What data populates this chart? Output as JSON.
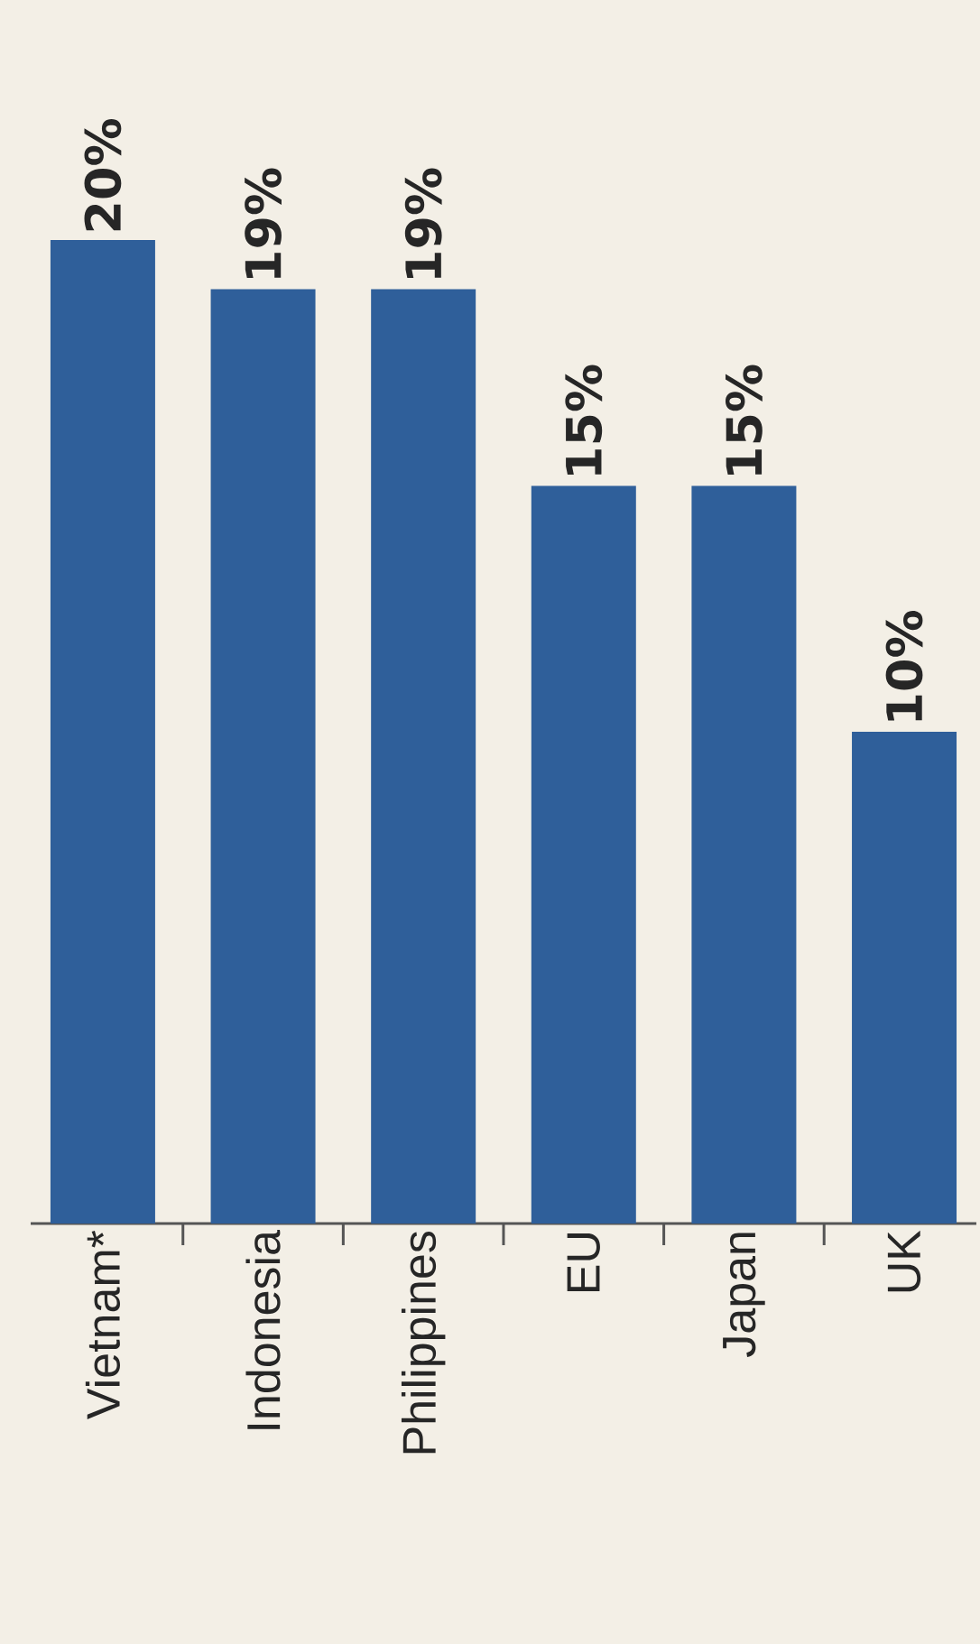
{
  "chart_data": {
    "type": "bar",
    "categories": [
      "Vietnam*",
      "Indonesia",
      "Philippines",
      "EU",
      "Japan",
      "UK"
    ],
    "values": [
      20,
      19,
      19,
      15,
      15,
      10
    ],
    "value_labels": [
      "20%",
      "19%",
      "19%",
      "15%",
      "15%",
      "10%"
    ],
    "color": "#2f5f9a"
  }
}
